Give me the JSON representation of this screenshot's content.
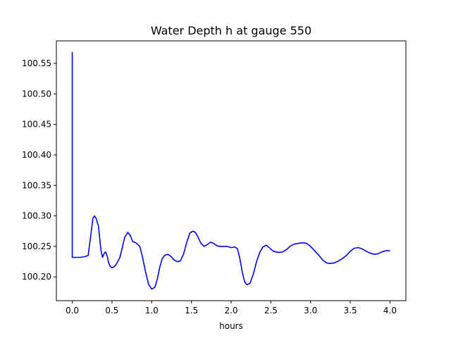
{
  "chart_data": {
    "type": "line",
    "title": "Water Depth h at gauge 550",
    "xlabel": "hours",
    "ylabel": "",
    "xlim": [
      -0.2,
      4.2
    ],
    "ylim": [
      100.161,
      100.587
    ],
    "xticks": [
      0.0,
      0.5,
      1.0,
      1.5,
      2.0,
      2.5,
      3.0,
      3.5,
      4.0
    ],
    "xtick_labels": [
      "0.0",
      "0.5",
      "1.0",
      "1.5",
      "2.0",
      "2.5",
      "3.0",
      "3.5",
      "4.0"
    ],
    "yticks": [
      100.2,
      100.25,
      100.3,
      100.35,
      100.4,
      100.45,
      100.5,
      100.55
    ],
    "ytick_labels": [
      "100.20",
      "100.25",
      "100.30",
      "100.35",
      "100.40",
      "100.45",
      "100.50",
      "100.55"
    ],
    "grid": false,
    "series": [
      {
        "color": "#0000ff",
        "x": [
          0.0,
          0.0,
          0.0,
          0.05,
          0.1,
          0.15,
          0.2,
          0.23,
          0.26,
          0.28,
          0.3,
          0.33,
          0.36,
          0.38,
          0.4,
          0.42,
          0.44,
          0.46,
          0.48,
          0.5,
          0.53,
          0.56,
          0.6,
          0.63,
          0.66,
          0.7,
          0.73,
          0.76,
          0.8,
          0.85,
          0.88,
          0.92,
          0.96,
          1.0,
          1.04,
          1.07,
          1.1,
          1.13,
          1.16,
          1.2,
          1.24,
          1.28,
          1.32,
          1.36,
          1.4,
          1.44,
          1.48,
          1.52,
          1.55,
          1.58,
          1.62,
          1.66,
          1.7,
          1.74,
          1.78,
          1.82,
          1.86,
          1.9,
          1.95,
          2.0,
          2.05,
          2.08,
          2.11,
          2.14,
          2.17,
          2.2,
          2.24,
          2.28,
          2.32,
          2.36,
          2.4,
          2.44,
          2.48,
          2.52,
          2.56,
          2.6,
          2.65,
          2.7,
          2.75,
          2.8,
          2.85,
          2.9,
          2.95,
          3.0,
          3.05,
          3.1,
          3.15,
          3.2,
          3.25,
          3.3,
          3.35,
          3.4,
          3.45,
          3.5,
          3.55,
          3.6,
          3.65,
          3.7,
          3.75,
          3.8,
          3.85,
          3.9,
          3.95,
          4.0
        ],
        "y": [
          100.232,
          100.568,
          100.232,
          100.232,
          100.232,
          100.233,
          100.235,
          100.265,
          100.296,
          100.3,
          100.296,
          100.283,
          100.245,
          100.232,
          100.238,
          100.241,
          100.234,
          100.222,
          100.217,
          100.215,
          100.217,
          100.222,
          100.232,
          100.248,
          100.265,
          100.273,
          100.268,
          100.258,
          100.256,
          100.25,
          100.235,
          100.21,
          100.188,
          100.18,
          100.183,
          100.196,
          100.215,
          100.229,
          100.235,
          100.237,
          100.234,
          100.228,
          100.225,
          100.226,
          100.237,
          100.256,
          100.272,
          100.275,
          100.273,
          100.266,
          100.255,
          100.25,
          100.253,
          100.257,
          100.255,
          100.251,
          100.25,
          100.25,
          100.25,
          100.248,
          100.249,
          100.246,
          100.23,
          100.208,
          100.192,
          100.187,
          100.19,
          100.205,
          100.225,
          100.24,
          100.249,
          100.252,
          100.248,
          100.243,
          100.241,
          100.24,
          100.241,
          100.245,
          100.251,
          100.254,
          100.255,
          100.256,
          100.255,
          100.25,
          100.243,
          100.236,
          100.228,
          100.223,
          100.222,
          100.223,
          100.226,
          100.23,
          100.235,
          100.242,
          100.247,
          100.248,
          100.246,
          100.242,
          100.239,
          100.237,
          100.238,
          100.241,
          100.243,
          100.243
        ]
      }
    ]
  }
}
